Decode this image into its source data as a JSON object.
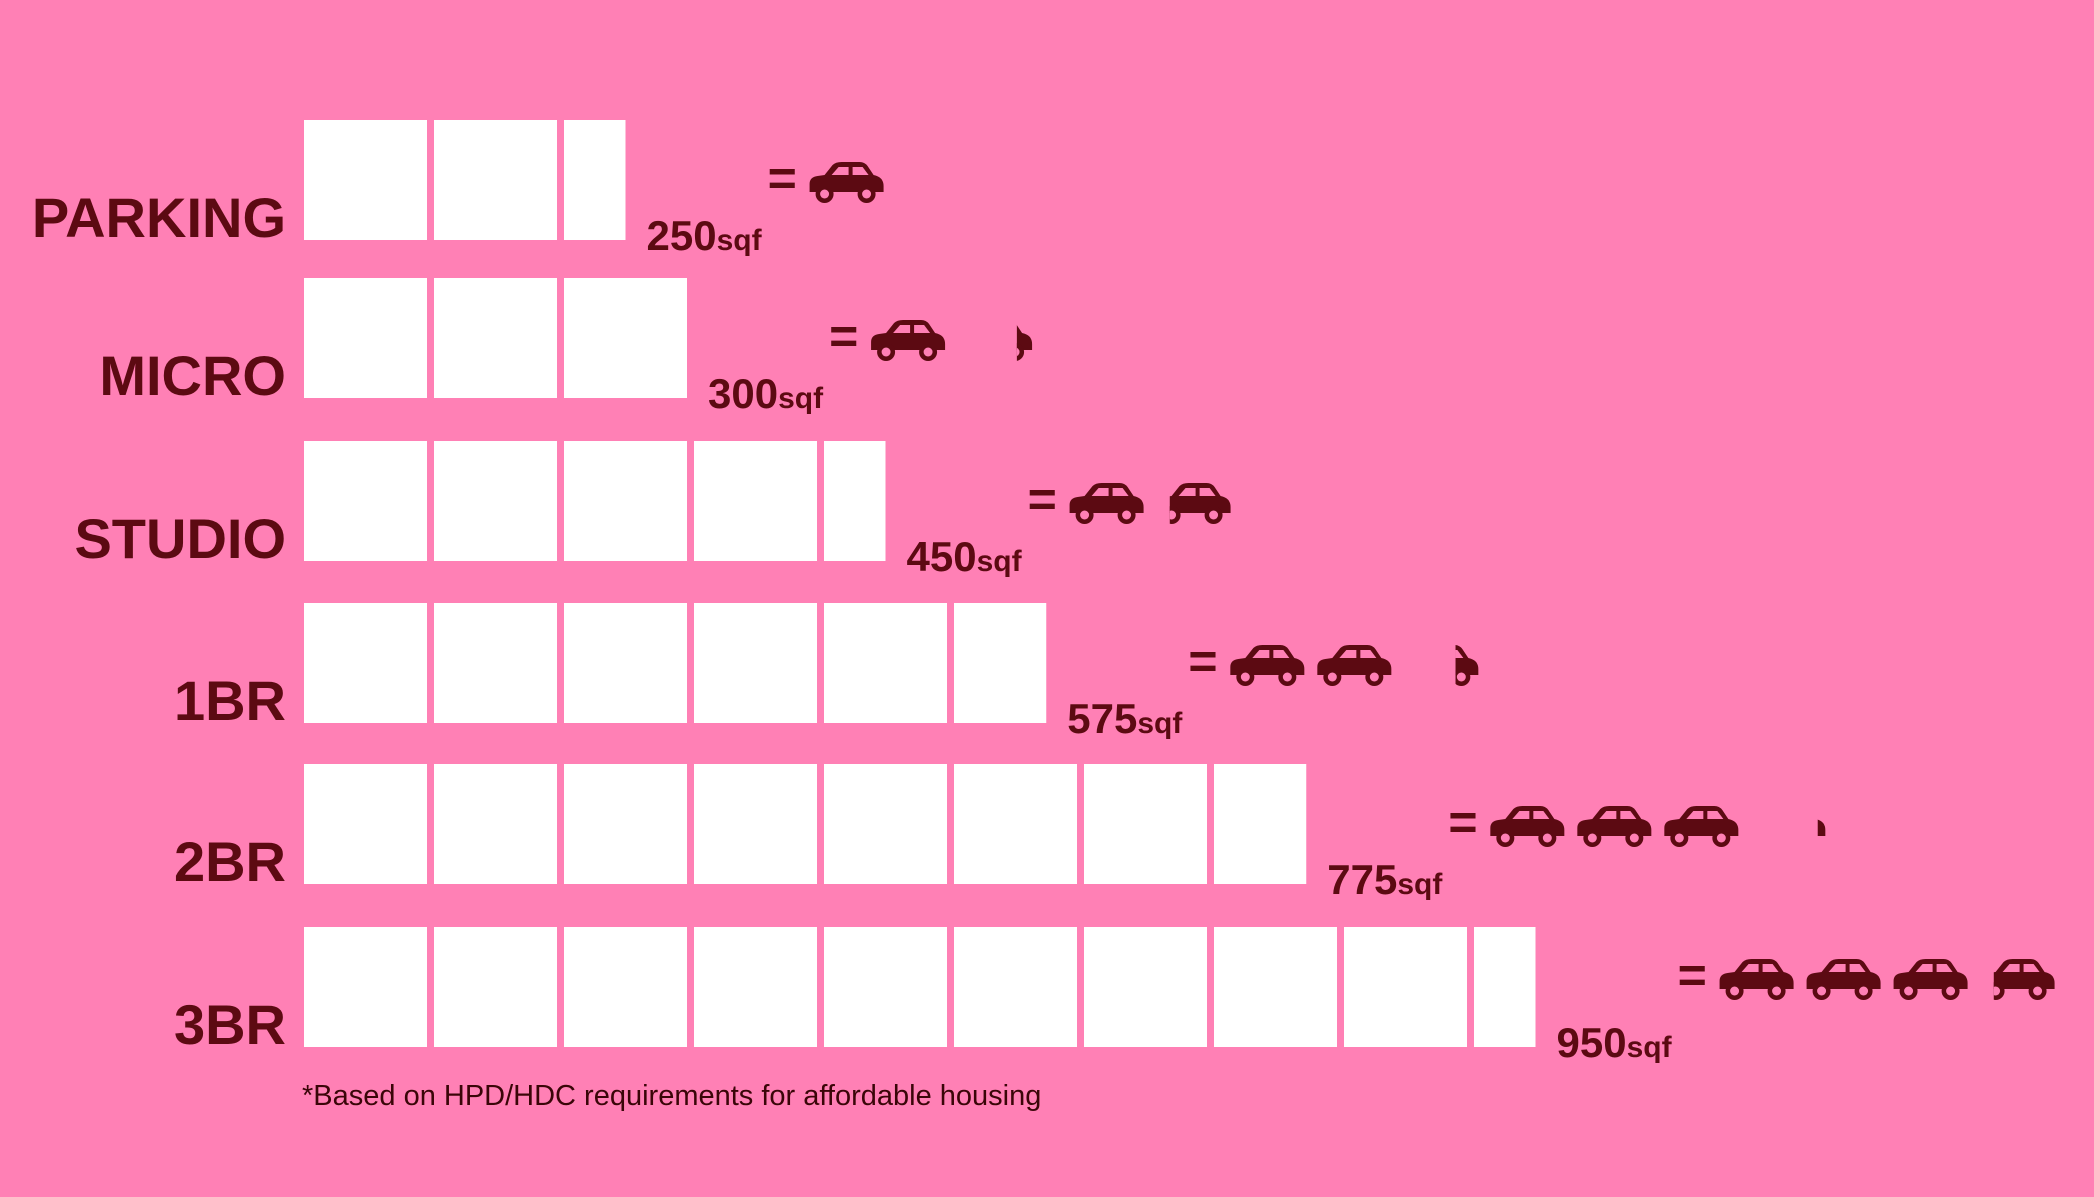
{
  "colors": {
    "background": "#FF80B5",
    "block": "#FFFFFF",
    "text": "#5C0A12",
    "car": "#5C0A12"
  },
  "icons": {
    "car": "car-icon"
  },
  "footnote": "*Based on HPD/HDC requirements for affordable housing",
  "chart_data": {
    "type": "bar",
    "orientation": "horizontal",
    "unit": "sqf",
    "block_size": 100,
    "categories": [
      "PARKING",
      "MICRO",
      "STUDIO",
      "1BR",
      "2BR",
      "3BR"
    ],
    "values": [
      250,
      300,
      450,
      575,
      775,
      950
    ],
    "value_labels": [
      "250",
      "300",
      "450",
      "575",
      "775",
      "950"
    ],
    "equivalent_cars": [
      1,
      1.2,
      1.8,
      2.3,
      3.1,
      3.8
    ],
    "equals_symbol": "=",
    "xlim": [
      0,
      1000
    ],
    "grid": false,
    "legend": "none"
  }
}
